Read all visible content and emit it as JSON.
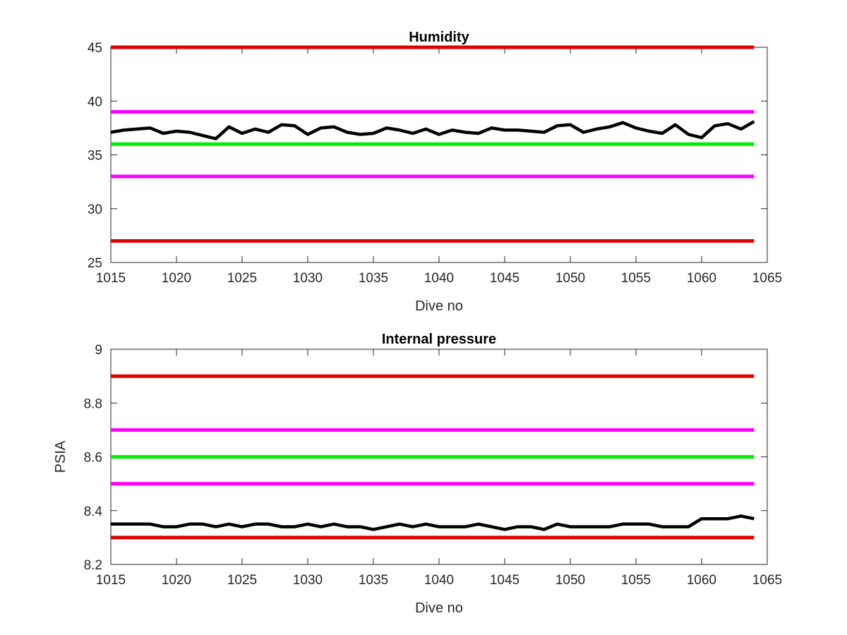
{
  "chart_data": [
    {
      "type": "line",
      "title": "Humidity",
      "xlabel": "Dive no",
      "ylabel": "",
      "xlim": [
        1015,
        1065
      ],
      "ylim": [
        25,
        45
      ],
      "xticks": [
        1015,
        1020,
        1025,
        1030,
        1035,
        1040,
        1045,
        1050,
        1055,
        1060,
        1065
      ],
      "yticks": [
        25,
        30,
        35,
        40,
        45
      ],
      "grid": false,
      "thresholds": [
        {
          "value": 45,
          "color": "#e00000"
        },
        {
          "value": 39,
          "color": "#ff00ff"
        },
        {
          "value": 36,
          "color": "#00ee00"
        },
        {
          "value": 33,
          "color": "#ff00ff"
        },
        {
          "value": 27,
          "color": "#e00000"
        }
      ],
      "series": [
        {
          "color": "#000000",
          "x": [
            1015,
            1016,
            1017,
            1018,
            1019,
            1020,
            1021,
            1022,
            1023,
            1024,
            1025,
            1026,
            1027,
            1028,
            1029,
            1030,
            1031,
            1032,
            1033,
            1034,
            1035,
            1036,
            1037,
            1038,
            1039,
            1040,
            1041,
            1042,
            1043,
            1044,
            1045,
            1046,
            1047,
            1048,
            1049,
            1050,
            1051,
            1052,
            1053,
            1054,
            1055,
            1056,
            1057,
            1058,
            1059,
            1060,
            1061,
            1062,
            1063,
            1064
          ],
          "values": [
            37.1,
            37.3,
            37.4,
            37.5,
            37.0,
            37.2,
            37.1,
            36.8,
            36.5,
            37.6,
            37.0,
            37.4,
            37.1,
            37.8,
            37.7,
            36.9,
            37.5,
            37.6,
            37.1,
            36.9,
            37.0,
            37.5,
            37.3,
            37.0,
            37.4,
            36.9,
            37.3,
            37.1,
            37.0,
            37.5,
            37.3,
            37.3,
            37.2,
            37.1,
            37.7,
            37.8,
            37.1,
            37.4,
            37.6,
            38.0,
            37.5,
            37.2,
            37.0,
            37.8,
            36.9,
            36.6,
            37.7,
            37.9,
            37.4,
            38.1
          ]
        }
      ]
    },
    {
      "type": "line",
      "title": "Internal pressure",
      "xlabel": "Dive no",
      "ylabel": "PSIA",
      "xlim": [
        1015,
        1065
      ],
      "ylim": [
        8.2,
        9
      ],
      "xticks": [
        1015,
        1020,
        1025,
        1030,
        1035,
        1040,
        1045,
        1050,
        1055,
        1060,
        1065
      ],
      "yticks": [
        8.2,
        8.4,
        8.6,
        8.8,
        9
      ],
      "grid": false,
      "thresholds": [
        {
          "value": 8.9,
          "color": "#e00000"
        },
        {
          "value": 8.7,
          "color": "#ff00ff"
        },
        {
          "value": 8.6,
          "color": "#00ee00"
        },
        {
          "value": 8.5,
          "color": "#ff00ff"
        },
        {
          "value": 8.3,
          "color": "#e00000"
        }
      ],
      "series": [
        {
          "color": "#000000",
          "x": [
            1015,
            1016,
            1017,
            1018,
            1019,
            1020,
            1021,
            1022,
            1023,
            1024,
            1025,
            1026,
            1027,
            1028,
            1029,
            1030,
            1031,
            1032,
            1033,
            1034,
            1035,
            1036,
            1037,
            1038,
            1039,
            1040,
            1041,
            1042,
            1043,
            1044,
            1045,
            1046,
            1047,
            1048,
            1049,
            1050,
            1051,
            1052,
            1053,
            1054,
            1055,
            1056,
            1057,
            1058,
            1059,
            1060,
            1061,
            1062,
            1063,
            1064
          ],
          "values": [
            8.35,
            8.35,
            8.35,
            8.35,
            8.34,
            8.34,
            8.35,
            8.35,
            8.34,
            8.35,
            8.34,
            8.35,
            8.35,
            8.34,
            8.34,
            8.35,
            8.34,
            8.35,
            8.34,
            8.34,
            8.33,
            8.34,
            8.35,
            8.34,
            8.35,
            8.34,
            8.34,
            8.34,
            8.35,
            8.34,
            8.33,
            8.34,
            8.34,
            8.33,
            8.35,
            8.34,
            8.34,
            8.34,
            8.34,
            8.35,
            8.35,
            8.35,
            8.34,
            8.34,
            8.34,
            8.37,
            8.37,
            8.37,
            8.38,
            8.37
          ]
        }
      ]
    }
  ]
}
